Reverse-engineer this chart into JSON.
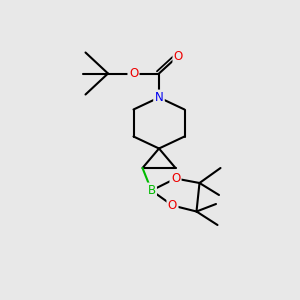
{
  "bg_color": "#e8e8e8",
  "bond_color": "#000000",
  "bond_width": 1.5,
  "atom_colors": {
    "N": "#0000ee",
    "O": "#ee0000",
    "B": "#00bb00",
    "C": "#000000"
  },
  "font_size_atom": 8.5
}
